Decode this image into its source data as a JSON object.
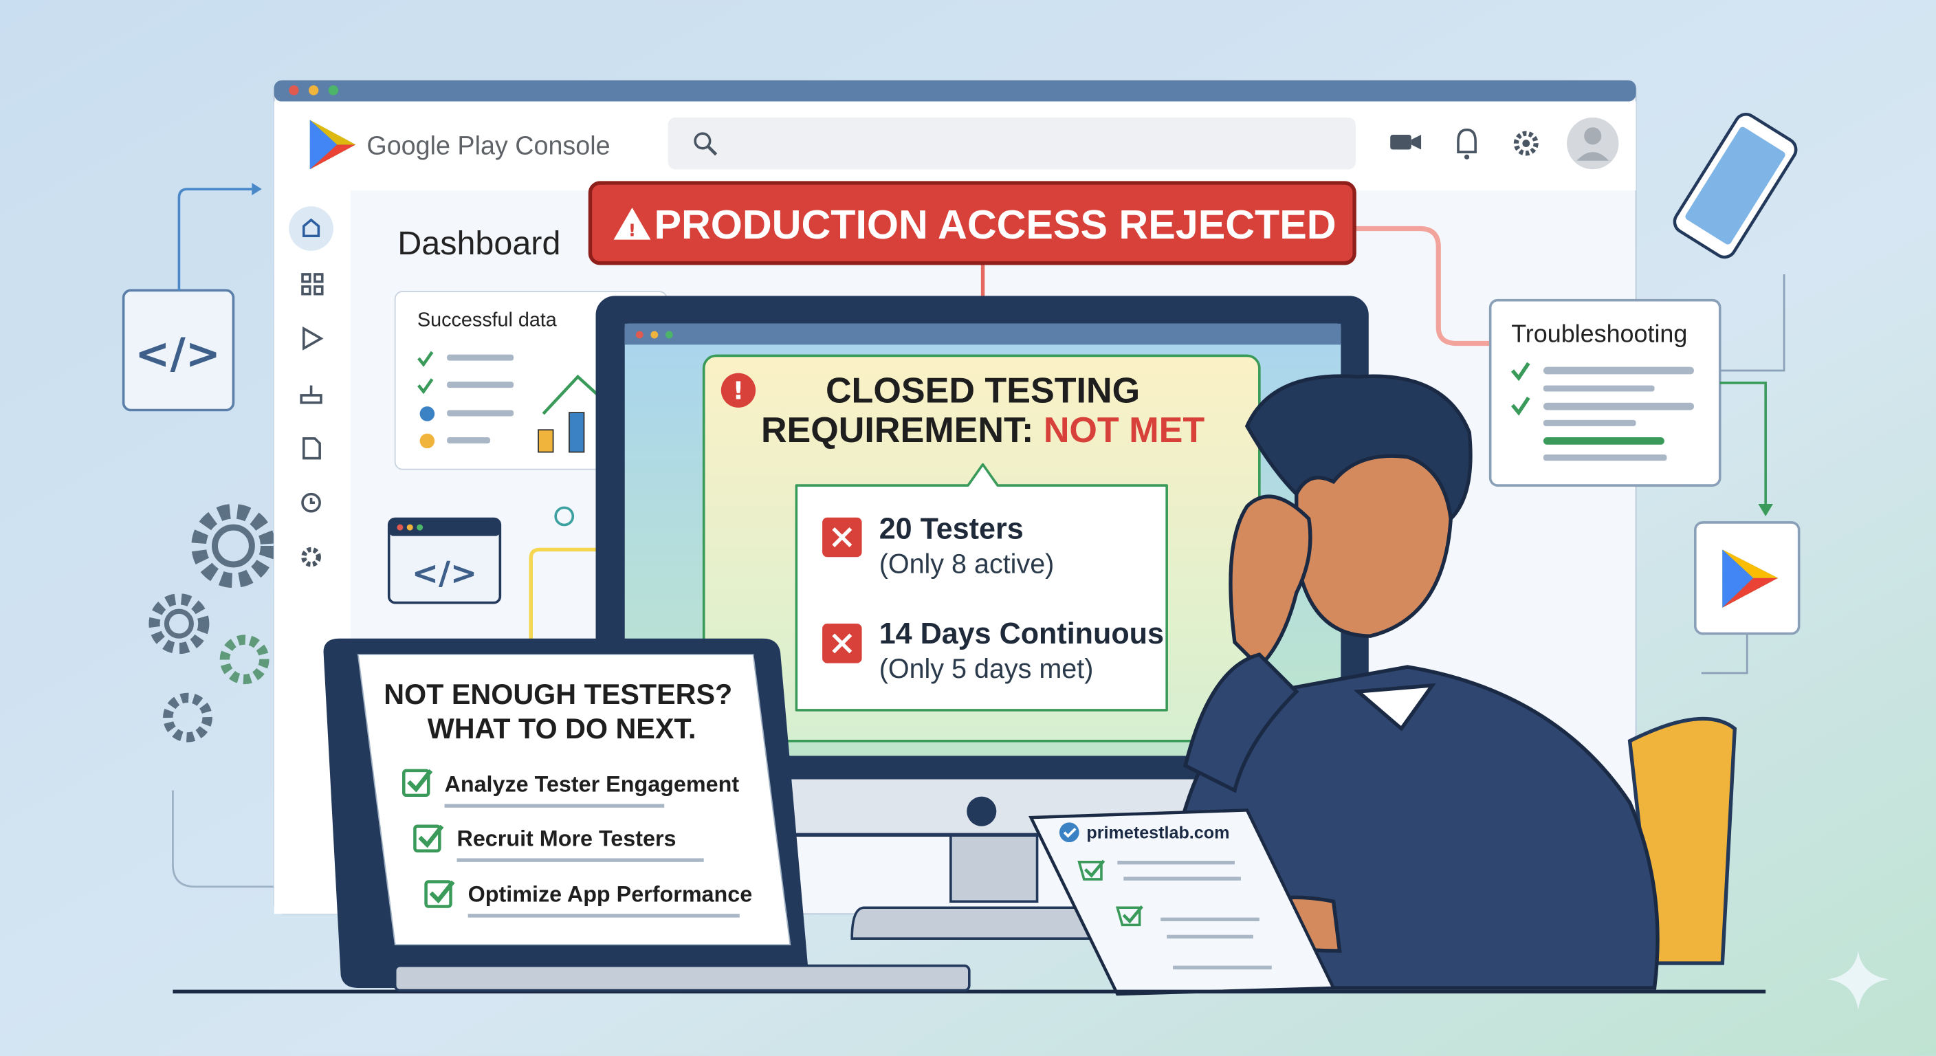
{
  "app": {
    "name": "Google Play Console",
    "search_placeholder": "",
    "header_icons": [
      "video-icon",
      "bell-icon",
      "gear-icon",
      "avatar-icon"
    ],
    "sidebar_icons": [
      "home-icon",
      "grid-icon",
      "play-icon",
      "inbox-icon",
      "document-icon",
      "clock-icon",
      "gear-icon"
    ]
  },
  "dashboard": {
    "title": "Dashboard",
    "card_title": "Successful data"
  },
  "alert": {
    "banner": "PRODUCTION ACCESS REJECTED",
    "title_line1": "CLOSED TESTING",
    "title_line2": "REQUIREMENT:",
    "status": "NOT MET",
    "requirements": [
      {
        "title": "20 Testers",
        "detail": "(Only 8 active)"
      },
      {
        "title": "14 Days Continuous",
        "detail": "(Only 5 days met)"
      }
    ]
  },
  "troubleshooting": {
    "title": "Troubleshooting"
  },
  "tablet": {
    "title_line1": "NOT ENOUGH TESTERS?",
    "title_line2": "WHAT TO DO NEXT.",
    "items": [
      "Analyze Tester Engagement",
      "Recruit More Testers",
      "Optimize App Performance"
    ]
  },
  "paper": {
    "site": "primetestlab.com"
  },
  "colors": {
    "danger": "#d8403a",
    "success": "#3a9a5a",
    "window_bar": "#5b7fa8",
    "navy": "#23395b"
  }
}
